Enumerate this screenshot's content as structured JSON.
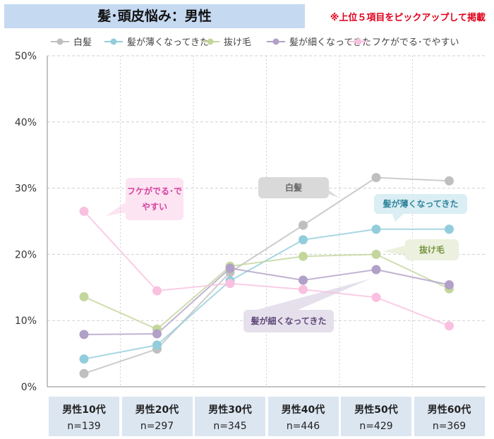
{
  "title": "髪･頭皮悩み：男性",
  "note": "※上位５項目をピックアップして掲載",
  "chart_data": {
    "type": "line",
    "categories": [
      "男性10代",
      "男性20代",
      "男性30代",
      "男性40代",
      "男性50代",
      "男性60代"
    ],
    "sample_sizes": [
      "n=139",
      "n=297",
      "n=345",
      "n=446",
      "n=429",
      "n=369"
    ],
    "yticks": [
      "0%",
      "10%",
      "20%",
      "30%",
      "40%",
      "50%"
    ],
    "ylim": [
      0,
      50
    ],
    "grid": true,
    "legend": "top",
    "series": [
      {
        "name": "白髪",
        "color": "#bfbfbf",
        "values": [
          2.0,
          5.7,
          17.3,
          24.4,
          31.6,
          31.1
        ]
      },
      {
        "name": "髪が薄くなってきた",
        "color": "#92cddc",
        "values": [
          4.2,
          6.3,
          16.0,
          22.2,
          23.8,
          23.8
        ]
      },
      {
        "name": "抜け毛",
        "color": "#c3d69b",
        "values": [
          13.6,
          8.7,
          18.2,
          19.7,
          20.0,
          14.8
        ]
      },
      {
        "name": "髪が細くなってきた",
        "color": "#b1a0c7",
        "values": [
          7.9,
          8.0,
          17.9,
          16.1,
          17.7,
          15.4
        ]
      },
      {
        "name": "フケがでる･でやすい",
        "color": "#f9c0e0",
        "values": [
          26.5,
          14.5,
          15.6,
          14.7,
          13.5,
          9.2
        ]
      }
    ],
    "callouts": [
      "白髪",
      "髪が薄くなってきた",
      "抜け毛",
      "髪が細くなってきた",
      "フケがでる･でやすい"
    ]
  }
}
